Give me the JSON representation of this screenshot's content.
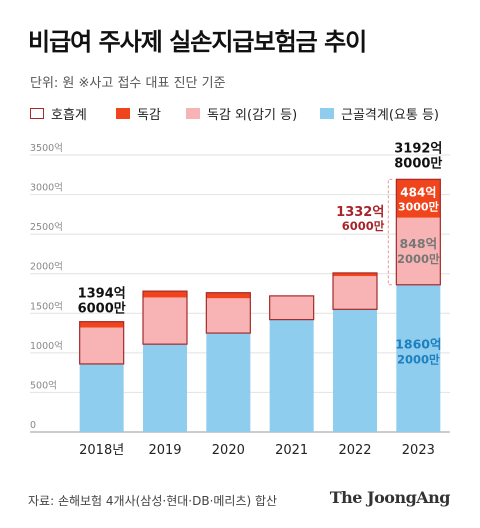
{
  "title": "비급여 주사제 실손지급보험금 추이",
  "subtitle": "단위: 원   ※사고 접수 대표 진단 기준",
  "legend": [
    {
      "label": "호흡계",
      "color": "#ffffff",
      "border": "#c0392b"
    },
    {
      "label": "독감",
      "color": "#f0441c",
      "border": "#f0441c"
    },
    {
      "label": "독감 외(감기 등)",
      "color": "#f8b4b4",
      "border": "#f8b4b4"
    },
    {
      "label": "근골격계(요통 등)",
      "color": "#8fcdee",
      "border": "#8fcdee"
    }
  ],
  "source": "자료: 손해보험 4개사(삼성·현대·DB·메리츠) 합산",
  "brand": "The JoongAng",
  "colors": {
    "respiratory_border": "#a52a2a",
    "flu": "#f0441c",
    "flu_other": "#f8b4b4",
    "musculo": "#8fcdee",
    "dark_red": "#a8232c",
    "blue_text": "#1c7fc0"
  },
  "chart_data": {
    "type": "bar",
    "stacked": true,
    "categories": [
      "2018년",
      "2019",
      "2020",
      "2021",
      "2022",
      "2023"
    ],
    "ylim": [
      0,
      3500
    ],
    "yticks": [
      0,
      500,
      1000,
      1500,
      2000,
      2500,
      3000,
      3500
    ],
    "ytick_labels": [
      "0",
      "500억",
      "1000억",
      "1500억",
      "2000억",
      "2500억",
      "3000억",
      "3500억"
    ],
    "series": [
      {
        "name": "근골격계(요통 등)",
        "values": [
          860,
          1110,
          1250,
          1420,
          1550,
          1860.2
        ]
      },
      {
        "name": "독감 외(감기 등)",
        "values": [
          460,
          590,
          440,
          300,
          420,
          848.2
        ]
      },
      {
        "name": "독감",
        "values": [
          74,
          80,
          70,
          0,
          40,
          484.3
        ]
      }
    ],
    "respiratory_outline": {
      "category": "2023",
      "from": 1860.2,
      "to": 3192.8
    },
    "annotations": [
      {
        "category": "2018년",
        "text": [
          "1394억",
          "6000만"
        ],
        "value": 1394.6,
        "style": "total"
      },
      {
        "category": "2023",
        "text": [
          "3192억",
          "8000만"
        ],
        "value": 3192.8,
        "style": "total"
      },
      {
        "category": "2023",
        "text": [
          "1332억",
          "6000만"
        ],
        "value": 1332.6,
        "style": "respiratory"
      },
      {
        "category": "2023",
        "text": [
          "484억",
          "3000만"
        ],
        "value": 484.3,
        "style": "flu"
      },
      {
        "category": "2023",
        "text": [
          "848억",
          "2000만"
        ],
        "value": 848.2,
        "style": "flu_other"
      },
      {
        "category": "2023",
        "text": [
          "1860억",
          "2000만"
        ],
        "value": 1860.2,
        "style": "musculo"
      }
    ]
  }
}
